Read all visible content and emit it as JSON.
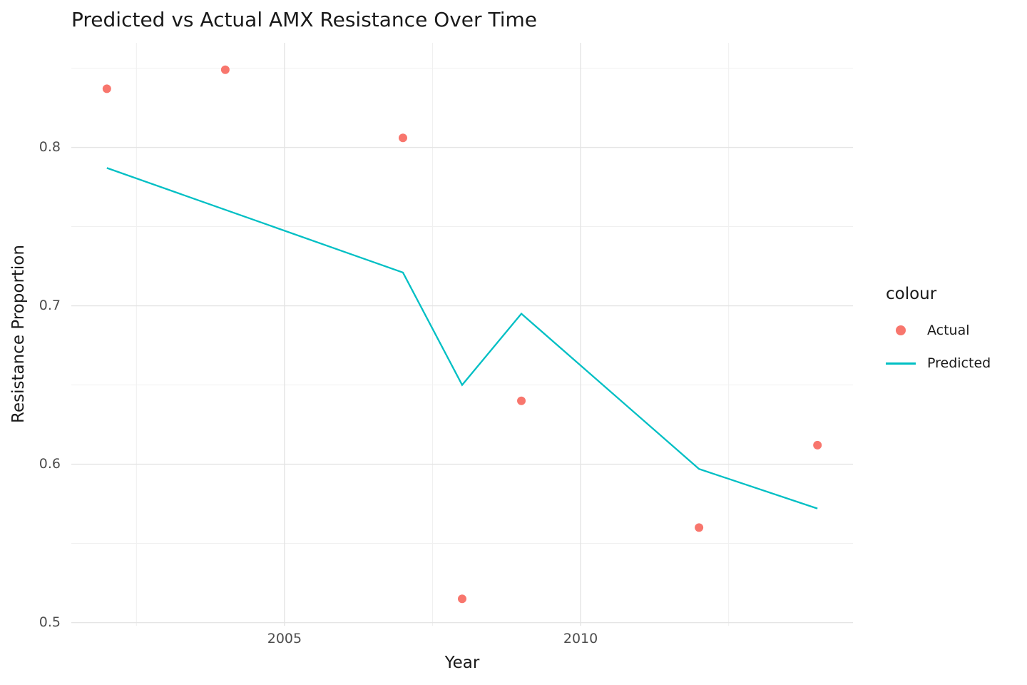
{
  "colors": {
    "actual": "#F8766D",
    "predicted": "#00BFC4",
    "grid_major": "#E4E4E4",
    "grid_minor": "#F0F0F0",
    "tick_text": "#4D4D4D",
    "text": "#1A1A1A",
    "background": "#FFFFFF"
  },
  "chart_data": {
    "type": "scatter+line",
    "title": "Predicted vs Actual AMX Resistance Over Time",
    "xlabel": "Year",
    "ylabel": "Resistance Proportion",
    "xlim": [
      2001.4,
      2014.6
    ],
    "ylim": [
      0.498,
      0.866
    ],
    "x_ticks": [
      2005,
      2010
    ],
    "x_minor_ticks": [
      2002.5,
      2007.5,
      2012.5
    ],
    "y_ticks": [
      0.5,
      0.6,
      0.7,
      0.8
    ],
    "y_minor_ticks": [
      0.55,
      0.65,
      0.75,
      0.85
    ],
    "grid": true,
    "legend": {
      "title": "colour",
      "position": "right",
      "entries": [
        {
          "label": "Actual",
          "type": "point",
          "color": "#F8766D"
        },
        {
          "label": "Predicted",
          "type": "line",
          "color": "#00BFC4"
        }
      ]
    },
    "series": [
      {
        "name": "Actual",
        "type": "scatter",
        "color": "#F8766D",
        "x": [
          2002,
          2004,
          2007,
          2008,
          2009,
          2012,
          2014
        ],
        "y": [
          0.837,
          0.849,
          0.806,
          0.515,
          0.64,
          0.56,
          0.612
        ]
      },
      {
        "name": "Predicted",
        "type": "line",
        "color": "#00BFC4",
        "x": [
          2002,
          2007,
          2008,
          2009,
          2012,
          2014
        ],
        "y": [
          0.787,
          0.721,
          0.65,
          0.695,
          0.597,
          0.572
        ]
      }
    ]
  }
}
